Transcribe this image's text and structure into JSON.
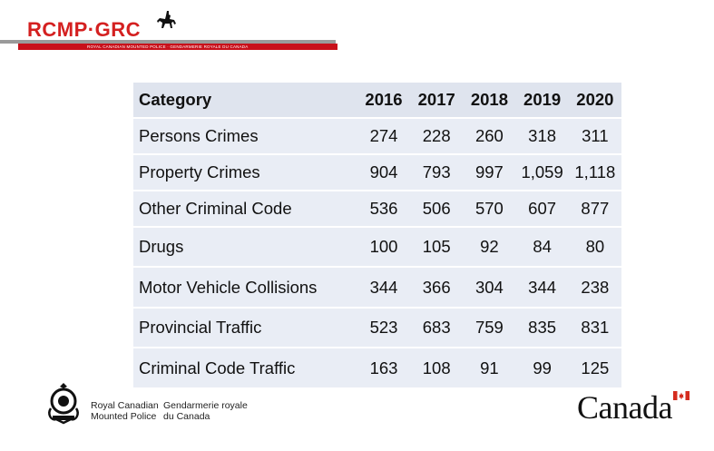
{
  "header": {
    "logo_text": "RCMP·GRC",
    "subtitle": "ROYAL CANADIAN MOUNTED POLICE · GENDARMERIE ROYALE DU CANADA"
  },
  "table": {
    "columns": [
      "Category",
      "2016",
      "2017",
      "2018",
      "2019",
      "2020"
    ],
    "rows": [
      [
        "Persons Crimes",
        "274",
        "228",
        "260",
        "318",
        "311"
      ],
      [
        "Property Crimes",
        "904",
        "793",
        "997",
        "1,059",
        "1,118"
      ],
      [
        "Other Criminal Code",
        "536",
        "506",
        "570",
        "607",
        "877"
      ],
      [
        "Drugs",
        "100",
        "105",
        "92",
        "84",
        "80"
      ],
      [
        "Motor Vehicle Collisions",
        "344",
        "366",
        "304",
        "344",
        "238"
      ],
      [
        "Provincial Traffic",
        "523",
        "683",
        "759",
        "835",
        "831"
      ],
      [
        "Criminal Code Traffic",
        "163",
        "108",
        "91",
        "99",
        "125"
      ]
    ]
  },
  "footer": {
    "english_line1": "Royal Canadian",
    "english_line2": "Mounted Police",
    "french_line1": "Gendarmerie royale",
    "french_line2": "du Canada",
    "wordmark": "Canada"
  },
  "colors": {
    "brand_red": "#c8101a",
    "table_row_bg": "#e9edf5"
  }
}
